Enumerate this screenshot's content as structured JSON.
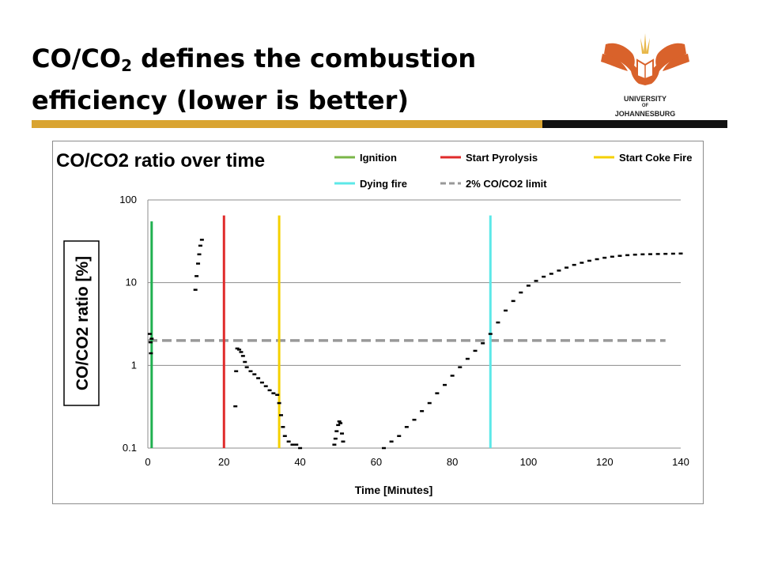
{
  "slide": {
    "title_main": "CO/CO",
    "title_sub": "2",
    "title_rest": " defines the combustion efficiency (lower is better)"
  },
  "logo": {
    "line1": "UNIVERSITY",
    "line2": "OF",
    "line3": "JOHANNESBURG",
    "colors": {
      "bird": "#d9622b",
      "text": "#222222"
    }
  },
  "colors": {
    "accent_gold": "#d9a431",
    "accent_dark": "#111111"
  },
  "chart_data": {
    "type": "scatter",
    "title": "CO/CO2 ratio over time",
    "xlabel": "Time [Minutes]",
    "ylabel": "CO/CO2 ratio [%]",
    "x_range": [
      0,
      140
    ],
    "y_range": [
      0.1,
      100
    ],
    "y_scale": "log",
    "grid": "horizontal",
    "legend_position": "top",
    "x_ticks": [
      "0",
      "20",
      "40",
      "60",
      "80",
      "100",
      "120",
      "140"
    ],
    "y_ticks": [
      {
        "value": 100,
        "label": "100"
      },
      {
        "value": 10,
        "label": "10"
      },
      {
        "value": 1,
        "label": "1"
      },
      {
        "value": 0.1,
        "label": "0.1"
      }
    ],
    "markers": [
      {
        "name": "Ignition",
        "x": 1,
        "color": "#7ab648",
        "band_color": "#20b050",
        "y_top": 55
      },
      {
        "name": "Start Pyrolysis",
        "x": 20,
        "color": "#e02b2b",
        "y_top": 65
      },
      {
        "name": "Start Coke Fire",
        "x": 34.5,
        "color": "#f5d000",
        "y_top": 65
      },
      {
        "name": "Dying fire",
        "x": 90,
        "color": "#5ce8e8",
        "y_top": 65
      }
    ],
    "limit_line": {
      "name": "2% CO/CO2 limit",
      "y": 2,
      "x_start": 0,
      "x_end": 136,
      "color": "#999999"
    },
    "legend_order": [
      "Ignition",
      "Start Pyrolysis",
      "Start Coke Fire",
      "Dying fire",
      "2% CO/CO2 limit"
    ],
    "data_series": {
      "color": "#000000",
      "points": [
        [
          0.5,
          2.4
        ],
        [
          0.7,
          1.9
        ],
        [
          0.8,
          1.4
        ],
        [
          1.0,
          2.1
        ],
        [
          12.5,
          8.2
        ],
        [
          12.8,
          12
        ],
        [
          13.2,
          17
        ],
        [
          13.5,
          22
        ],
        [
          13.8,
          28
        ],
        [
          14.2,
          33
        ],
        [
          23,
          0.32
        ],
        [
          23.2,
          0.85
        ],
        [
          23.5,
          1.6
        ],
        [
          24,
          1.55
        ],
        [
          24.5,
          1.45
        ],
        [
          25,
          1.3
        ],
        [
          25.5,
          1.1
        ],
        [
          26,
          0.95
        ],
        [
          27,
          0.85
        ],
        [
          28,
          0.78
        ],
        [
          29,
          0.7
        ],
        [
          30,
          0.62
        ],
        [
          31,
          0.56
        ],
        [
          32,
          0.5
        ],
        [
          33,
          0.46
        ],
        [
          34,
          0.44
        ],
        [
          34.5,
          0.35
        ],
        [
          35,
          0.25
        ],
        [
          35.5,
          0.18
        ],
        [
          36,
          0.14
        ],
        [
          37,
          0.12
        ],
        [
          38,
          0.11
        ],
        [
          39,
          0.11
        ],
        [
          40,
          0.1
        ],
        [
          49,
          0.11
        ],
        [
          49.3,
          0.13
        ],
        [
          49.6,
          0.16
        ],
        [
          50,
          0.19
        ],
        [
          50.3,
          0.21
        ],
        [
          50.6,
          0.2
        ],
        [
          51,
          0.15
        ],
        [
          51.3,
          0.12
        ],
        [
          62,
          0.1
        ],
        [
          64,
          0.12
        ],
        [
          66,
          0.14
        ],
        [
          68,
          0.18
        ],
        [
          70,
          0.22
        ],
        [
          72,
          0.28
        ],
        [
          74,
          0.35
        ],
        [
          76,
          0.46
        ],
        [
          78,
          0.58
        ],
        [
          80,
          0.75
        ],
        [
          82,
          0.95
        ],
        [
          84,
          1.2
        ],
        [
          86,
          1.5
        ],
        [
          88,
          1.85
        ],
        [
          90,
          2.4
        ],
        [
          92,
          3.3
        ],
        [
          94,
          4.6
        ],
        [
          96,
          6.0
        ],
        [
          98,
          7.6
        ],
        [
          100,
          9.2
        ],
        [
          102,
          10.5
        ],
        [
          104,
          11.8
        ],
        [
          106,
          12.8
        ],
        [
          108,
          14.0
        ],
        [
          110,
          15.2
        ],
        [
          112,
          16.4
        ],
        [
          114,
          17.4
        ],
        [
          116,
          18.4
        ],
        [
          118,
          19.2
        ],
        [
          120,
          20.0
        ],
        [
          122,
          20.6
        ],
        [
          124,
          21.1
        ],
        [
          126,
          21.5
        ],
        [
          128,
          21.8
        ],
        [
          130,
          22.0
        ],
        [
          132,
          22.1
        ],
        [
          134,
          22.2
        ],
        [
          136,
          22.3
        ],
        [
          138,
          22.4
        ],
        [
          140,
          22.5
        ]
      ]
    }
  }
}
